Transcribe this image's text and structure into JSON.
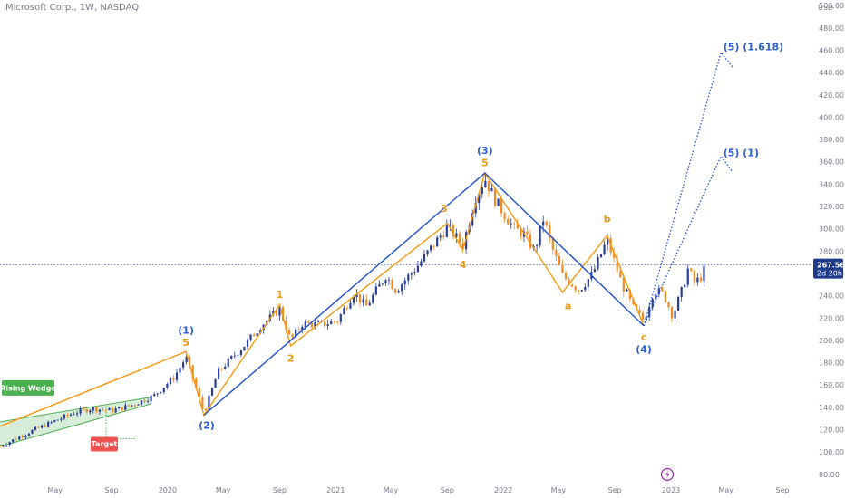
{
  "header": {
    "symbol_line": "Microsoft Corp., 1W, NASDAQ",
    "currency": "USD"
  },
  "price_badge": {
    "price": "267.56",
    "countdown": "2d 20h",
    "price_value": 267.56
  },
  "chart_data": {
    "type": "candlestick",
    "ylim": [
      75,
      505
    ],
    "y_ticks": [
      80,
      100,
      120,
      140,
      160,
      180,
      200,
      220,
      240,
      260,
      280,
      300,
      320,
      340,
      360,
      380,
      400,
      420,
      440,
      460,
      480,
      500
    ],
    "y_tick_labels": [
      "80.00",
      "100.00",
      "120.00",
      "140.00",
      "160.00",
      "180.00",
      "200.00",
      "220.00",
      "240.00",
      "260.00",
      "280.00",
      "300.00",
      "320.00",
      "340.00",
      "360.00",
      "380.00",
      "400.00",
      "420.00",
      "440.00",
      "460.00",
      "480.00",
      "500.00"
    ],
    "x_ticks": [
      {
        "label": "May",
        "date": "2019-05-01"
      },
      {
        "label": "Sep",
        "date": "2019-09-01"
      },
      {
        "label": "2020",
        "date": "2020-01-01"
      },
      {
        "label": "May",
        "date": "2020-05-01"
      },
      {
        "label": "Sep",
        "date": "2020-09-01"
      },
      {
        "label": "2021",
        "date": "2021-01-01"
      },
      {
        "label": "May",
        "date": "2021-05-01"
      },
      {
        "label": "Sep",
        "date": "2021-09-01"
      },
      {
        "label": "2022",
        "date": "2022-01-01"
      },
      {
        "label": "May",
        "date": "2022-05-01"
      },
      {
        "label": "Sep",
        "date": "2022-09-01"
      },
      {
        "label": "2023",
        "date": "2023-01-01"
      },
      {
        "label": "May",
        "date": "2023-05-01"
      },
      {
        "label": "Sep",
        "date": "2023-09-01"
      }
    ],
    "x_range": [
      "2019-01-01",
      "2023-11-05"
    ],
    "anchors": [
      [
        "2019-01-01",
        105
      ],
      [
        "2019-03-01",
        117
      ],
      [
        "2019-05-01",
        128
      ],
      [
        "2019-06-10",
        135
      ],
      [
        "2019-07-20",
        139
      ],
      [
        "2019-09-01",
        137
      ],
      [
        "2019-10-15",
        142
      ],
      [
        "2019-12-01",
        150
      ],
      [
        "2020-01-15",
        167
      ],
      [
        "2020-02-10",
        185
      ],
      [
        "2020-03-20",
        135
      ],
      [
        "2020-04-20",
        172
      ],
      [
        "2020-06-15",
        195
      ],
      [
        "2020-07-20",
        212
      ],
      [
        "2020-09-01",
        228
      ],
      [
        "2020-09-25",
        200
      ],
      [
        "2020-10-20",
        215
      ],
      [
        "2020-12-01",
        214
      ],
      [
        "2021-01-05",
        218
      ],
      [
        "2021-02-10",
        243
      ],
      [
        "2021-03-08",
        230
      ],
      [
        "2021-04-20",
        258
      ],
      [
        "2021-05-12",
        245
      ],
      [
        "2021-06-25",
        265
      ],
      [
        "2021-08-01",
        285
      ],
      [
        "2021-09-01",
        302
      ],
      [
        "2021-10-05",
        285
      ],
      [
        "2021-11-01",
        328
      ],
      [
        "2021-11-22",
        345
      ],
      [
        "2021-12-15",
        325
      ],
      [
        "2022-01-25",
        300
      ],
      [
        "2022-02-15",
        295
      ],
      [
        "2022-03-10",
        280
      ],
      [
        "2022-03-30",
        310
      ],
      [
        "2022-04-15",
        285
      ],
      [
        "2022-05-10",
        258
      ],
      [
        "2022-06-15",
        245
      ],
      [
        "2022-07-15",
        260
      ],
      [
        "2022-08-15",
        290
      ],
      [
        "2022-09-15",
        252
      ],
      [
        "2022-10-12",
        228
      ],
      [
        "2022-11-03",
        218
      ],
      [
        "2022-11-25",
        245
      ],
      [
        "2022-12-15",
        242
      ],
      [
        "2023-01-05",
        222
      ],
      [
        "2023-01-25",
        245
      ],
      [
        "2023-02-08",
        265
      ],
      [
        "2023-02-20",
        252
      ],
      [
        "2023-03-05",
        255
      ],
      [
        "2023-03-20",
        268
      ]
    ],
    "rising_wedge": {
      "upper": [
        [
          "2019-01-01",
          127
        ],
        [
          "2019-11-25",
          149
        ]
      ],
      "lower": [
        [
          "2019-01-01",
          105
        ],
        [
          "2019-11-25",
          143
        ]
      ],
      "target_path": [
        [
          "2019-08-20",
          141
        ],
        [
          "2019-08-20",
          112
        ],
        [
          "2019-10-25",
          112
        ]
      ]
    },
    "blue_waves": [
      [
        "2020-03-20",
        133
      ],
      [
        "2021-11-22",
        350
      ],
      [
        "2022-11-03",
        213
      ]
    ],
    "orange_waves": [
      [
        "2019-01-01",
        123
      ],
      [
        "2020-02-10",
        190
      ],
      [
        "2020-03-20",
        133
      ],
      [
        "2020-09-01",
        232
      ],
      [
        "2020-09-25",
        195
      ],
      [
        "2021-09-01",
        305
      ],
      [
        "2021-10-05",
        281
      ],
      [
        "2021-11-22",
        350
      ],
      [
        "2022-05-10",
        243
      ],
      [
        "2022-08-15",
        294
      ],
      [
        "2022-11-03",
        213
      ]
    ],
    "projection_1618": [
      [
        "2022-11-03",
        213
      ],
      [
        "2023-04-20",
        458
      ],
      [
        "2023-05-15",
        445
      ]
    ],
    "projection_1": [
      [
        "2022-11-03",
        213
      ],
      [
        "2023-04-20",
        365
      ],
      [
        "2023-05-15",
        351
      ]
    ],
    "wave_labels": [
      {
        "text": "(1)",
        "date": "2020-02-10",
        "price": 206,
        "color": "blue"
      },
      {
        "text": "5",
        "date": "2020-02-10",
        "price": 195,
        "color": "orange"
      },
      {
        "text": "(2)",
        "date": "2020-03-26",
        "price": 121,
        "color": "blue"
      },
      {
        "text": "1",
        "date": "2020-09-01",
        "price": 238,
        "color": "orange"
      },
      {
        "text": "2",
        "date": "2020-09-25",
        "price": 181,
        "color": "orange"
      },
      {
        "text": "3",
        "date": "2021-08-25",
        "price": 315,
        "color": "orange"
      },
      {
        "text": "4",
        "date": "2021-10-05",
        "price": 265,
        "color": "orange"
      },
      {
        "text": "(3)",
        "date": "2021-11-22",
        "price": 367,
        "color": "blue"
      },
      {
        "text": "5",
        "date": "2021-11-22",
        "price": 356,
        "color": "orange"
      },
      {
        "text": "a",
        "date": "2022-05-22",
        "price": 228,
        "color": "orange"
      },
      {
        "text": "b",
        "date": "2022-08-15",
        "price": 306,
        "color": "orange"
      },
      {
        "text": "c",
        "date": "2022-11-03",
        "price": 200,
        "color": "orange"
      },
      {
        "text": "(4)",
        "date": "2022-11-03",
        "price": 189,
        "color": "blue"
      },
      {
        "text": "(5) (1.618)",
        "date": "2023-04-25",
        "price": 460,
        "color": "blue"
      },
      {
        "text": "(5) (1)",
        "date": "2023-04-25",
        "price": 365,
        "color": "blue"
      }
    ],
    "annotations": {
      "rising_wedge_label": "Rising Wedge",
      "target_label": "Target"
    },
    "colors": {
      "up": "#2a3d9b",
      "down": "#f08a24",
      "blue_line": "#1f50d4",
      "orange_line": "#f29a12",
      "wedge": "#4caf50",
      "target": "#ef5350",
      "price_line": "#2a3d9b"
    }
  }
}
